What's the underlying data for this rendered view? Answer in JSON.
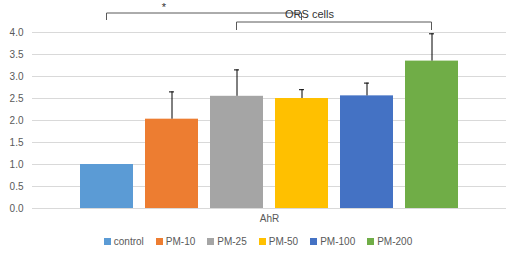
{
  "chart_data": {
    "type": "bar",
    "title": "ORS cells",
    "annotations": [
      "*"
    ],
    "categories": [
      "AhR"
    ],
    "series": [
      {
        "name": "control",
        "color": "#5b9bd5",
        "values": [
          1.0
        ],
        "error": [
          0
        ]
      },
      {
        "name": "PM-10",
        "color": "#ed7d31",
        "values": [
          2.03
        ],
        "error": [
          0.62
        ]
      },
      {
        "name": "PM-25",
        "color": "#a5a5a5",
        "values": [
          2.55
        ],
        "error": [
          0.6
        ]
      },
      {
        "name": "PM-50",
        "color": "#ffc000",
        "values": [
          2.5
        ],
        "error": [
          0.2
        ]
      },
      {
        "name": "PM-100",
        "color": "#4472c4",
        "values": [
          2.56
        ],
        "error": [
          0.29
        ]
      },
      {
        "name": "PM-200",
        "color": "#70ad47",
        "values": [
          3.35
        ],
        "error": [
          0.62
        ]
      }
    ],
    "ylim": [
      0,
      4
    ],
    "yticks": [
      0,
      0.5,
      1,
      1.5,
      2,
      2.5,
      3,
      3.5,
      4
    ],
    "grid": true,
    "legend": "bottom"
  }
}
